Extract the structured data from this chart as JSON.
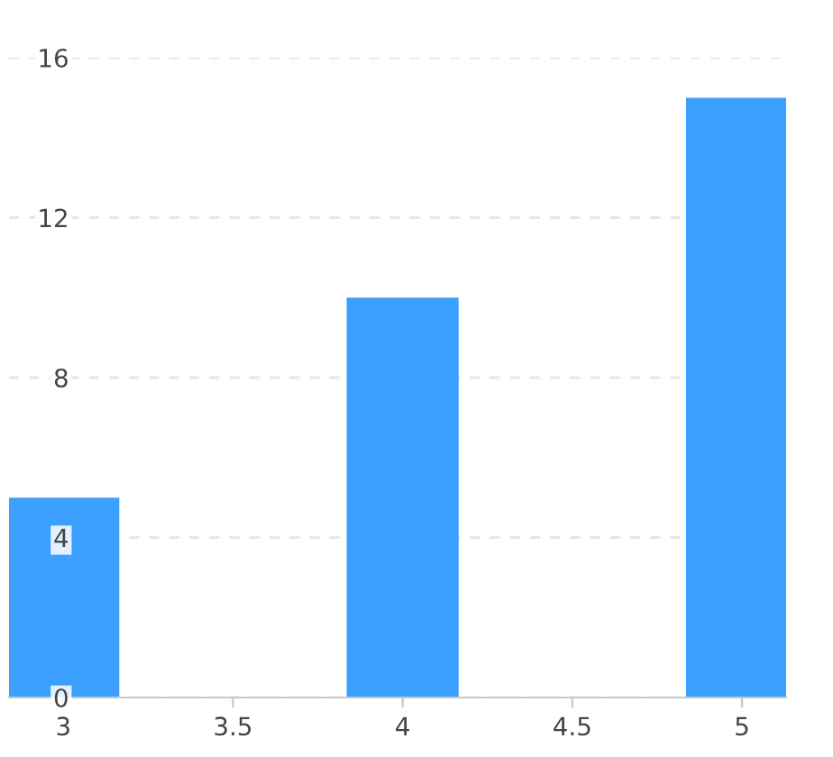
{
  "chart_data": {
    "type": "bar",
    "x": [
      3,
      4,
      5
    ],
    "values": [
      5,
      10,
      15
    ],
    "color": "#3ba0ff",
    "xlim": [
      2.84,
      5.13
    ],
    "xticks": [
      3,
      3.5,
      4,
      4.5,
      5
    ],
    "ylim": [
      0,
      16
    ],
    "yticks": [
      0,
      4,
      8,
      12,
      16
    ],
    "grid": "y"
  }
}
